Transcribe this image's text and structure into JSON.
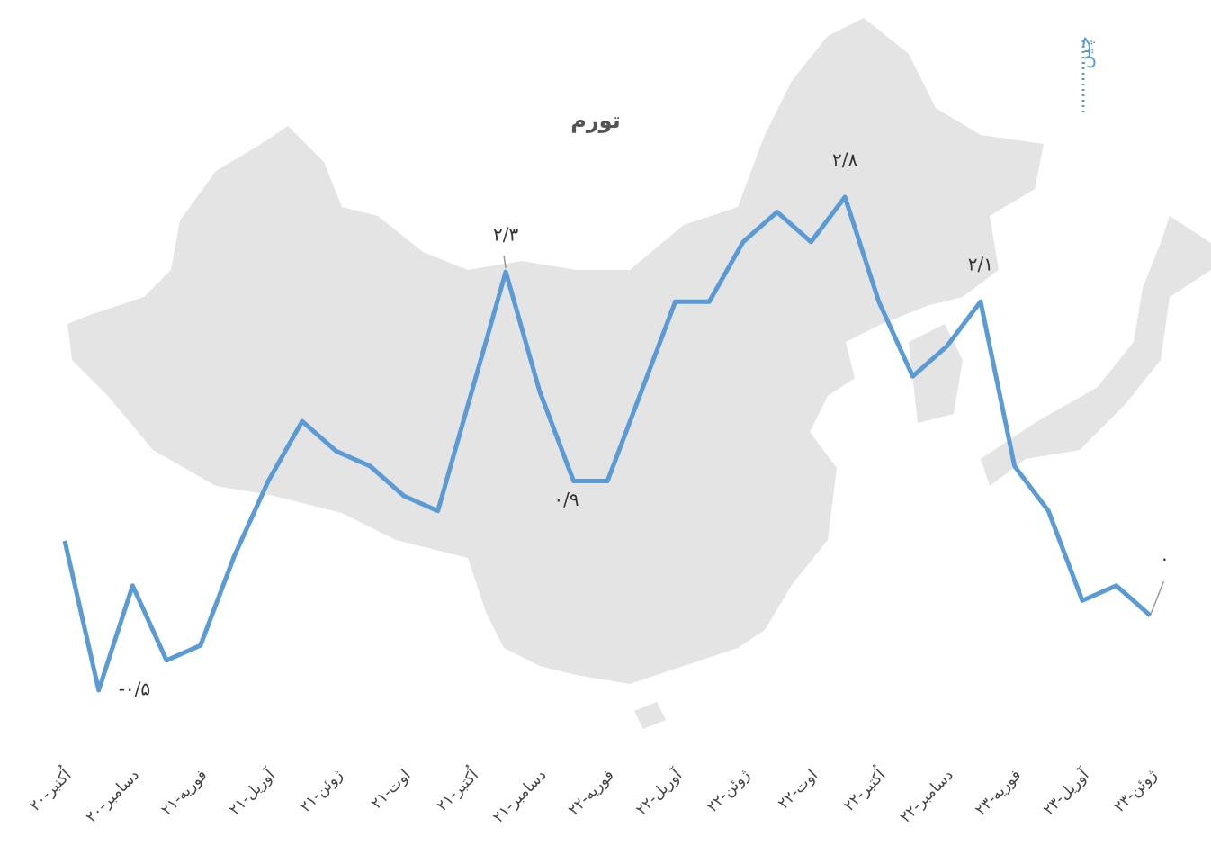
{
  "chart_data": {
    "type": "line",
    "title": "تورم",
    "categories": [
      "اُکتبر-۲۰",
      null,
      "دسامبر-۲۰",
      null,
      "فوریه-۲۱",
      null,
      "آوریل-۲۱",
      null,
      "ژوئن-۲۱",
      null,
      "اوت-۲۱",
      null,
      "اُکتبر-۲۱",
      null,
      "دسامبر-۲۱",
      null,
      "فوریه-۲۲",
      null,
      "آوریل-۲۲",
      null,
      "ژوئن-۲۲",
      null,
      "اوت-۲۲",
      null,
      "اُکتبر-۲۲",
      null,
      "دسامبر-۲۲",
      null,
      "فوریه-۲۳",
      null,
      "آوریل-۲۳",
      null,
      "ژوئن-۲۳"
    ],
    "series": [
      {
        "name": "چین",
        "color": "#5b9bd5",
        "values": [
          0.5,
          -0.5,
          0.2,
          -0.3,
          -0.2,
          0.4,
          0.9,
          1.3,
          1.1,
          1.0,
          0.8,
          0.7,
          1.5,
          2.3,
          1.5,
          0.9,
          0.9,
          1.5,
          2.1,
          2.1,
          2.5,
          2.7,
          2.5,
          2.8,
          2.1,
          1.6,
          1.8,
          2.1,
          1.0,
          0.7,
          0.1,
          0.2,
          0.0
        ],
        "value_labels": [
          null,
          "-۰/۵",
          null,
          null,
          null,
          null,
          null,
          null,
          null,
          null,
          null,
          null,
          null,
          "۲/۳",
          null,
          "۰/۹",
          null,
          null,
          null,
          null,
          null,
          null,
          null,
          "۲/۸",
          null,
          null,
          null,
          "۲/۱",
          null,
          null,
          null,
          null,
          "۰"
        ]
      }
    ],
    "ylim": [
      -0.5,
      2.8
    ]
  }
}
